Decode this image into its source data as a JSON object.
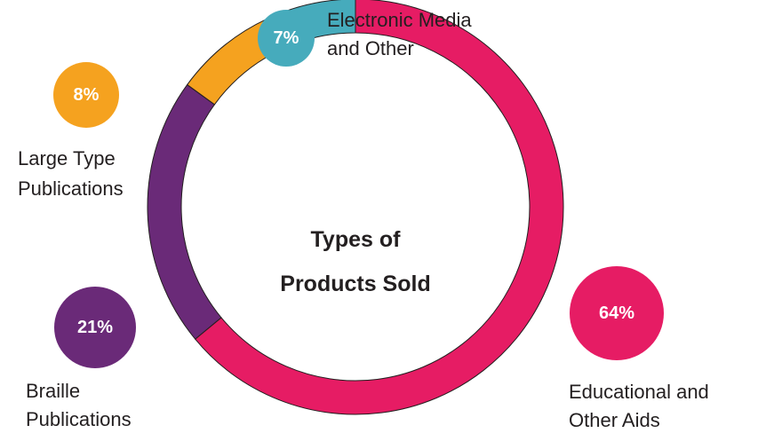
{
  "chart_data": {
    "type": "pie",
    "title": [
      "Types of",
      "Products Sold"
    ],
    "slices": [
      {
        "label": [
          "Educational and",
          "Other Aids"
        ],
        "value": 64,
        "display": "64%",
        "color": "#e61c64"
      },
      {
        "label": [
          "Braille",
          "Publications"
        ],
        "value": 21,
        "display": "21%",
        "color": "#6a2a78"
      },
      {
        "label": [
          "Large Type",
          "Publications"
        ],
        "value": 8,
        "display": "8%",
        "color": "#f5a21f"
      },
      {
        "label": [
          "Electronic Media",
          "and Other"
        ],
        "value": 7,
        "display": "7%",
        "color": "#46abbc"
      }
    ]
  }
}
